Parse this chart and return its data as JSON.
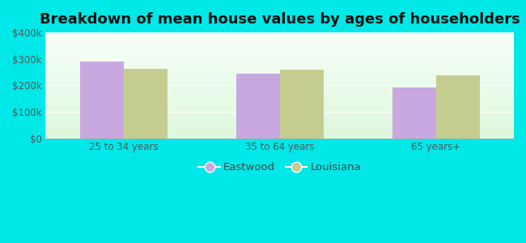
{
  "title": "Breakdown of mean house values by ages of householders",
  "categories": [
    "25 to 34 years",
    "35 to 64 years",
    "65 years+"
  ],
  "eastwood_values": [
    290000,
    245000,
    193000
  ],
  "louisiana_values": [
    262000,
    258000,
    237000
  ],
  "eastwood_color": "#c9a8e0",
  "louisiana_color": "#c5cc90",
  "background_outer": "#00e8e8",
  "ylim": [
    0,
    400000
  ],
  "yticks": [
    0,
    100000,
    200000,
    300000,
    400000
  ],
  "ytick_labels": [
    "$0",
    "$100k",
    "$200k",
    "$300k",
    "$400k"
  ],
  "bar_width": 0.28,
  "legend_labels": [
    "Eastwood",
    "Louisiana"
  ],
  "title_fontsize": 13,
  "tick_fontsize": 8.5,
  "legend_fontsize": 9.5
}
